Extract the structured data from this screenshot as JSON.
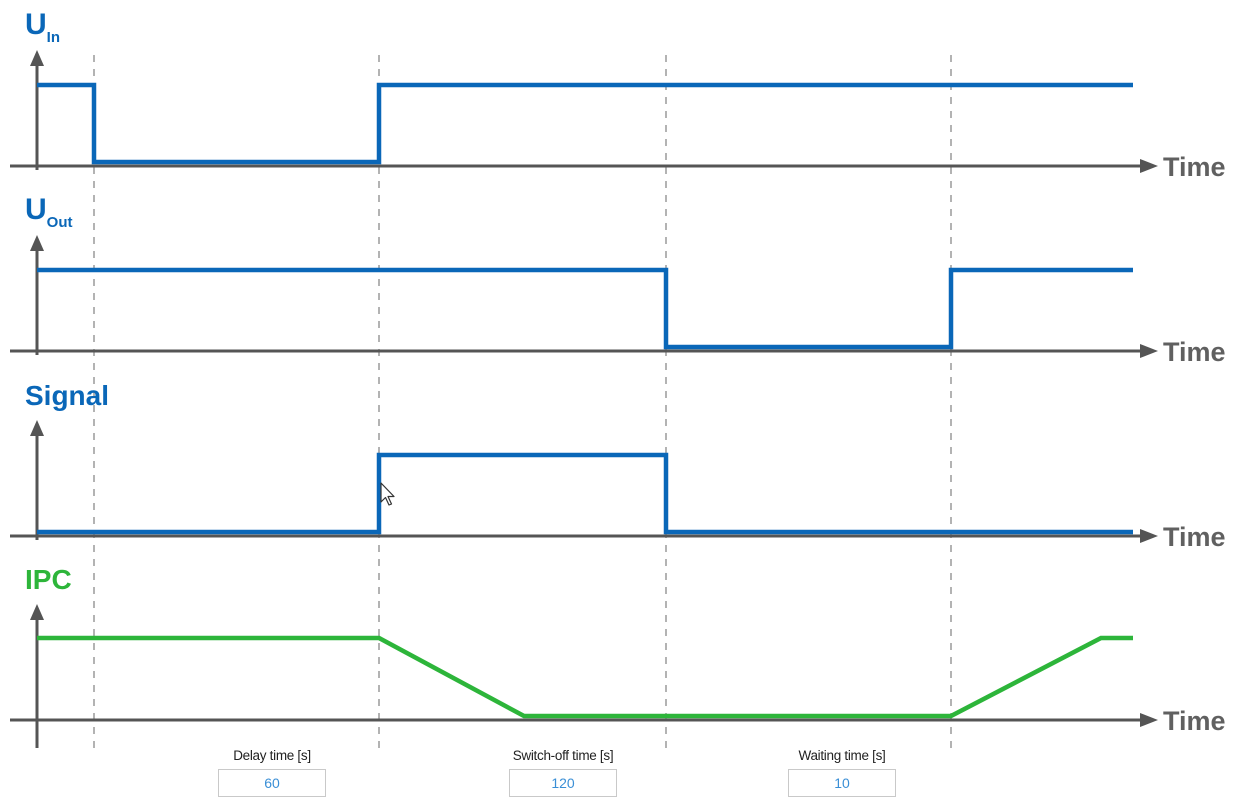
{
  "colors": {
    "signal_blue": "#0a67b8",
    "ipc_green": "#2db53a",
    "axis_gray": "#555555",
    "input_text": "#3a8fd6"
  },
  "axis_label": "Time",
  "panels": [
    {
      "label_main": "U",
      "label_sub": "In",
      "color": "#0a67b8"
    },
    {
      "label_main": "U",
      "label_sub": "Out",
      "color": "#0a67b8"
    },
    {
      "label_main": "Signal",
      "label_sub": "",
      "color": "#0a67b8"
    },
    {
      "label_main": "IPC",
      "label_sub": "",
      "color": "#2db53a"
    }
  ],
  "params": {
    "delay": {
      "label": "Delay time [s]",
      "value": "60"
    },
    "switch_off": {
      "label": "Switch-off time [s]",
      "value": "120"
    },
    "waiting": {
      "label": "Waiting time [s]",
      "value": "10"
    }
  },
  "cursor_icon": "mouse-pointer-icon"
}
